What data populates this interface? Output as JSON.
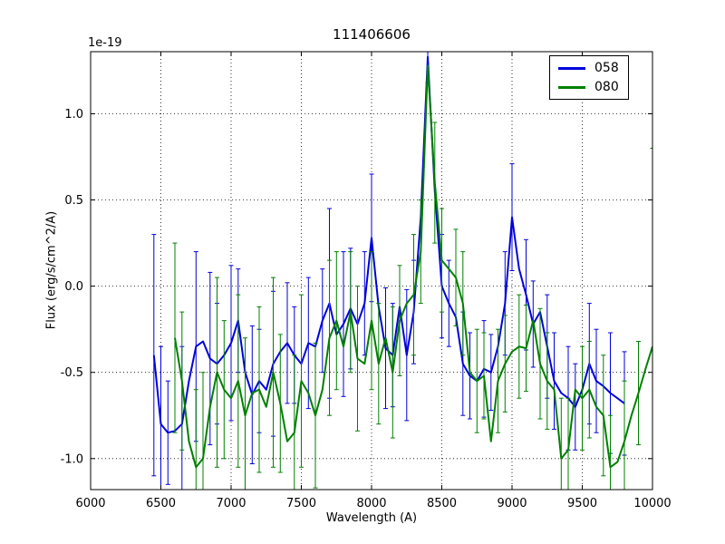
{
  "chart_data": {
    "type": "line",
    "title": "111406606",
    "xlabel": "Wavelength (A)",
    "ylabel": "Flux (erg/s/cm^2/A)",
    "y_offset_label": "1e-19",
    "xlim": [
      6000,
      10000
    ],
    "ylim": [
      -1.18,
      1.36
    ],
    "xticks": [
      6000,
      6500,
      7000,
      7500,
      8000,
      8500,
      9000,
      9500,
      10000
    ],
    "yticks": [
      -1.0,
      -0.5,
      0.0,
      0.5,
      1.0
    ],
    "grid": true,
    "grid_style": "dotted",
    "legend_position": "upper right",
    "series": [
      {
        "name": "058",
        "color": "#0000dd",
        "x": [
          6450,
          6500,
          6550,
          6600,
          6650,
          6700,
          6750,
          6800,
          6850,
          6900,
          6950,
          7000,
          7050,
          7100,
          7150,
          7200,
          7250,
          7300,
          7350,
          7400,
          7450,
          7500,
          7550,
          7600,
          7650,
          7700,
          7750,
          7800,
          7850,
          7900,
          7950,
          8000,
          8050,
          8100,
          8150,
          8200,
          8250,
          8300,
          8350,
          8400,
          8450,
          8500,
          8550,
          8600,
          8650,
          8700,
          8750,
          8800,
          8850,
          8900,
          8950,
          9000,
          9050,
          9100,
          9150,
          9200,
          9250,
          9300,
          9350,
          9400,
          9450,
          9500,
          9550,
          9600,
          9650,
          9700,
          9750,
          9800
        ],
        "y": [
          -0.4,
          -0.8,
          -0.85,
          -0.84,
          -0.8,
          -0.55,
          -0.35,
          -0.32,
          -0.42,
          -0.45,
          -0.4,
          -0.33,
          -0.2,
          -0.5,
          -0.63,
          -0.55,
          -0.6,
          -0.45,
          -0.38,
          -0.33,
          -0.4,
          -0.45,
          -0.33,
          -0.35,
          -0.2,
          -0.1,
          -0.28,
          -0.22,
          -0.13,
          -0.22,
          -0.1,
          0.28,
          -0.12,
          -0.36,
          -0.4,
          -0.12,
          -0.4,
          -0.15,
          0.4,
          1.33,
          0.55,
          0.0,
          -0.1,
          -0.18,
          -0.45,
          -0.52,
          -0.55,
          -0.48,
          -0.5,
          -0.35,
          -0.1,
          0.4,
          0.1,
          -0.05,
          -0.22,
          -0.15,
          -0.35,
          -0.55,
          -0.62,
          -0.65,
          -0.7,
          -0.6,
          -0.45,
          -0.55,
          -0.58,
          -0.62,
          -0.65,
          -0.68
        ],
        "yerr": [
          0.7,
          0.45,
          0.3,
          0,
          0.45,
          0,
          0.55,
          0,
          0.5,
          0.35,
          0,
          0.45,
          0.3,
          0,
          0.4,
          0.3,
          0,
          0.42,
          0,
          0.35,
          0.28,
          0,
          0.38,
          0,
          0.3,
          0.55,
          0,
          0.42,
          0.35,
          0,
          0.3,
          0.37,
          0,
          0.35,
          0.3,
          0,
          0.38,
          0.3,
          0,
          0.15,
          0,
          0.3,
          0.25,
          0,
          0.3,
          0.25,
          0,
          0.28,
          0.22,
          0,
          0.3,
          0.31,
          0,
          0.32,
          0.25,
          0,
          0.3,
          0.28,
          0,
          0.3,
          0.25,
          0,
          0.35,
          0.3,
          0,
          0.35,
          0,
          0.3
        ]
      },
      {
        "name": "080",
        "color": "#008000",
        "x": [
          6600,
          6650,
          6700,
          6750,
          6800,
          6850,
          6900,
          6950,
          7000,
          7050,
          7100,
          7150,
          7200,
          7250,
          7300,
          7350,
          7400,
          7450,
          7500,
          7550,
          7600,
          7650,
          7700,
          7750,
          7800,
          7850,
          7900,
          7950,
          8000,
          8050,
          8100,
          8150,
          8200,
          8250,
          8300,
          8350,
          8400,
          8450,
          8500,
          8550,
          8600,
          8650,
          8700,
          8750,
          8800,
          8850,
          8900,
          8950,
          9000,
          9050,
          9100,
          9150,
          9200,
          9250,
          9300,
          9350,
          9400,
          9450,
          9500,
          9550,
          9600,
          9650,
          9700,
          9750,
          9800,
          9850,
          9900,
          9950,
          10000
        ],
        "y": [
          -0.3,
          -0.55,
          -0.9,
          -1.05,
          -1.0,
          -0.7,
          -0.5,
          -0.6,
          -0.65,
          -0.55,
          -0.75,
          -0.62,
          -0.6,
          -0.7,
          -0.5,
          -0.68,
          -0.9,
          -0.85,
          -0.55,
          -0.62,
          -0.75,
          -0.6,
          -0.3,
          -0.2,
          -0.35,
          -0.15,
          -0.42,
          -0.45,
          -0.2,
          -0.45,
          -0.3,
          -0.5,
          -0.2,
          -0.1,
          -0.05,
          0.2,
          1.28,
          0.6,
          0.15,
          0.1,
          0.05,
          -0.1,
          -0.5,
          -0.55,
          -0.52,
          -0.9,
          -0.55,
          -0.45,
          -0.38,
          -0.35,
          -0.36,
          -0.2,
          -0.45,
          -0.55,
          -0.6,
          -1.0,
          -0.95,
          -0.6,
          -0.65,
          -0.6,
          -0.7,
          -0.75,
          -1.05,
          -1.02,
          -0.9,
          -0.75,
          -0.62,
          -0.48,
          -0.35
        ],
        "yerr": [
          0.55,
          0.4,
          0,
          0.45,
          0.5,
          0,
          0.55,
          0.4,
          0,
          0.5,
          0.45,
          0,
          0.48,
          0,
          0.55,
          0.4,
          0,
          0.45,
          0.5,
          0,
          0.42,
          0,
          0.45,
          0.4,
          0,
          0.35,
          0.42,
          0,
          0.4,
          0.35,
          0,
          0.38,
          0.32,
          0,
          0.35,
          0.3,
          0,
          0.35,
          0.3,
          0,
          0.28,
          0.3,
          0,
          0.3,
          0.25,
          0,
          0.3,
          0.28,
          0,
          0.3,
          0.25,
          0,
          0.32,
          0.28,
          0,
          0.35,
          0.3,
          0,
          0.3,
          0.28,
          0,
          0.35,
          0.3,
          0,
          0.35,
          0,
          0.3,
          0,
          1.15
        ]
      }
    ]
  }
}
